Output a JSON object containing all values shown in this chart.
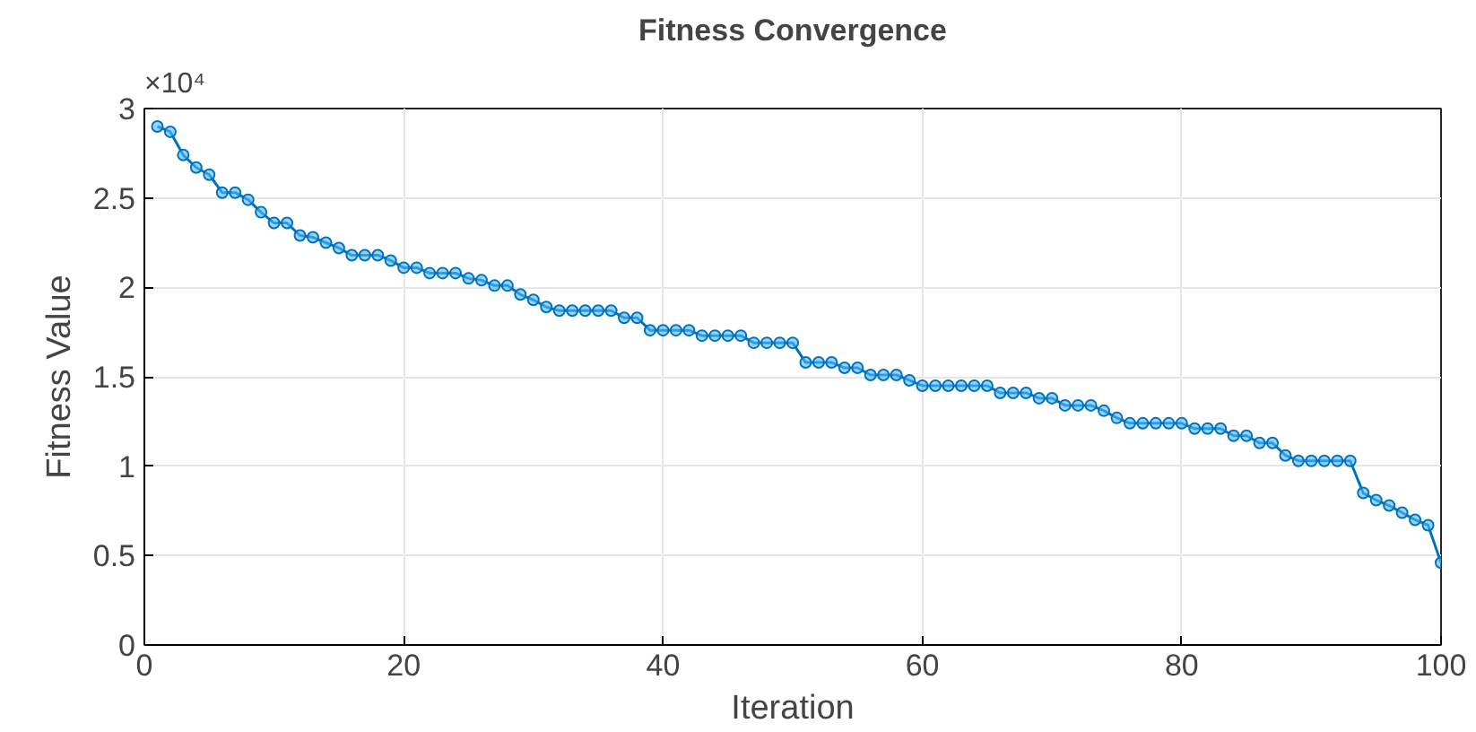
{
  "chart_data": {
    "type": "line",
    "title": "Fitness Convergence",
    "xlabel": "Iteration",
    "ylabel": "Fitness Value",
    "x": [
      1,
      2,
      3,
      4,
      5,
      6,
      7,
      8,
      9,
      10,
      11,
      12,
      13,
      14,
      15,
      16,
      17,
      18,
      19,
      20,
      21,
      22,
      23,
      24,
      25,
      26,
      27,
      28,
      29,
      30,
      31,
      32,
      33,
      34,
      35,
      36,
      37,
      38,
      39,
      40,
      41,
      42,
      43,
      44,
      45,
      46,
      47,
      48,
      49,
      50,
      51,
      52,
      53,
      54,
      55,
      56,
      57,
      58,
      59,
      60,
      61,
      62,
      63,
      64,
      65,
      66,
      67,
      68,
      69,
      70,
      71,
      72,
      73,
      74,
      75,
      76,
      77,
      78,
      79,
      80,
      81,
      82,
      83,
      84,
      85,
      86,
      87,
      88,
      89,
      90,
      91,
      92,
      93,
      94,
      95,
      96,
      97,
      98,
      99,
      100
    ],
    "series": [
      {
        "color": "#0072bd",
        "values": [
          2.9,
          2.87,
          2.74,
          2.67,
          2.63,
          2.53,
          2.53,
          2.49,
          2.42,
          2.36,
          2.36,
          2.29,
          2.28,
          2.25,
          2.22,
          2.18,
          2.18,
          2.18,
          2.15,
          2.11,
          2.11,
          2.08,
          2.08,
          2.08,
          2.05,
          2.04,
          2.01,
          2.01,
          1.96,
          1.93,
          1.89,
          1.87,
          1.87,
          1.87,
          1.87,
          1.87,
          1.83,
          1.83,
          1.76,
          1.76,
          1.76,
          1.76,
          1.73,
          1.73,
          1.73,
          1.73,
          1.69,
          1.69,
          1.69,
          1.69,
          1.58,
          1.58,
          1.58,
          1.55,
          1.55,
          1.51,
          1.51,
          1.51,
          1.48,
          1.45,
          1.45,
          1.45,
          1.45,
          1.45,
          1.45,
          1.41,
          1.41,
          1.41,
          1.38,
          1.38,
          1.34,
          1.34,
          1.34,
          1.31,
          1.27,
          1.24,
          1.24,
          1.24,
          1.24,
          1.24,
          1.21,
          1.21,
          1.21,
          1.17,
          1.17,
          1.13,
          1.13,
          1.06,
          1.03,
          1.03,
          1.03,
          1.03,
          1.03,
          0.85,
          0.81,
          0.78,
          0.74,
          0.7,
          0.67,
          0.46
        ]
      }
    ],
    "xlim": [
      0,
      100
    ],
    "xticks": [
      0,
      20,
      40,
      60,
      80,
      100
    ],
    "ylim": [
      0,
      3
    ],
    "yticks": [
      0,
      0.5,
      1,
      1.5,
      2,
      2.5,
      3
    ],
    "annotations": [
      "×10⁴"
    ],
    "grid": true,
    "marker": "circle",
    "line_style": "solid"
  }
}
